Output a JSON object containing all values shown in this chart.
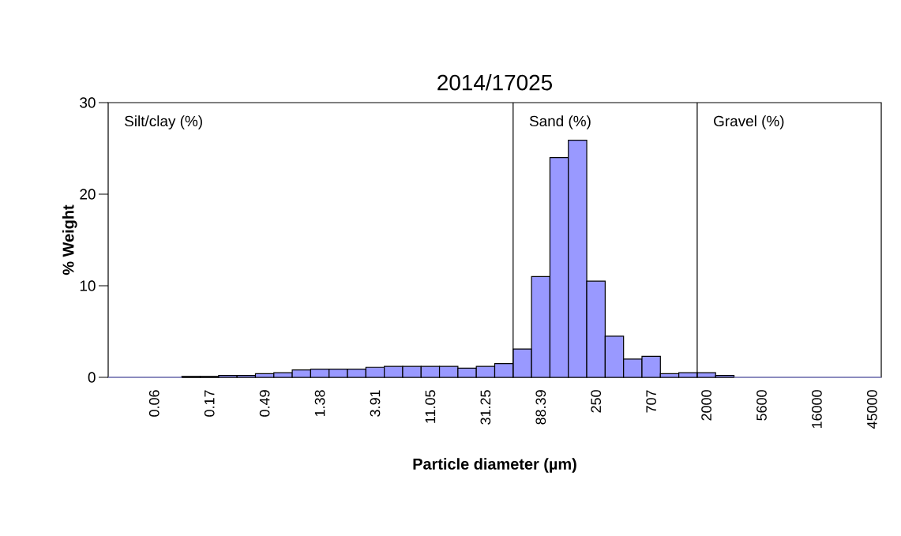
{
  "chart_data": {
    "type": "bar",
    "title": "2014/17025",
    "xlabel": "Particle diameter (µm)",
    "ylabel": "% Weight",
    "categories": [
      null,
      null,
      "0.06",
      null,
      null,
      "0.17",
      null,
      null,
      "0.49",
      null,
      null,
      "1.38",
      null,
      null,
      "3.91",
      null,
      null,
      "11.05",
      null,
      null,
      "31.25",
      null,
      null,
      "88.39",
      null,
      null,
      "250",
      null,
      null,
      "707",
      null,
      null,
      "2000",
      null,
      null,
      "5600",
      null,
      null,
      "16000",
      null,
      null,
      "45000"
    ],
    "values": [
      0,
      0,
      0,
      0,
      0.1,
      0.1,
      0.2,
      0.2,
      0.4,
      0.5,
      0.8,
      0.9,
      0.9,
      0.9,
      1.1,
      1.2,
      1.2,
      1.2,
      1.2,
      1.0,
      1.2,
      1.5,
      3.1,
      11.0,
      24.0,
      25.9,
      10.5,
      4.5,
      2.0,
      2.3,
      0.4,
      0.5,
      0.5,
      0.2,
      0,
      0,
      0,
      0,
      0,
      0,
      0,
      0
    ],
    "color": "#9999ff",
    "ylim": [
      0,
      30
    ],
    "yticks": [
      0,
      10,
      20,
      30
    ],
    "grid": false,
    "annotations": [
      "Silt/clay (%)",
      "Sand (%)",
      "Gravel (%)"
    ]
  }
}
